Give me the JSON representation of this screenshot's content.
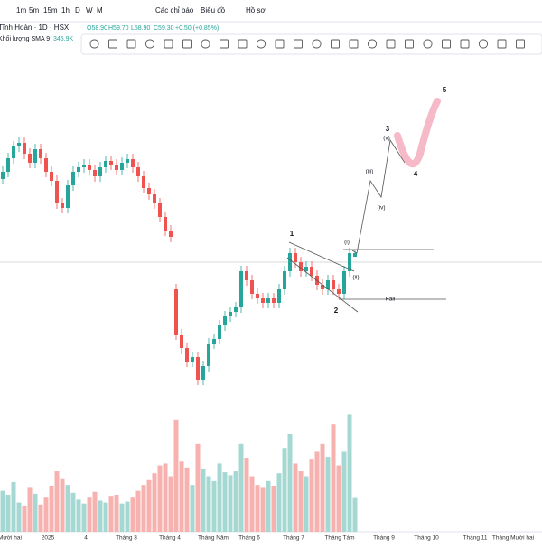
{
  "toolbar": {
    "intervals": [
      "1m",
      "5m",
      "15m",
      "1h",
      "D",
      "W",
      "M"
    ],
    "menus": [
      "Các chỉ báo",
      "Biểu đồ",
      "Hồ sơ"
    ]
  },
  "legend": {
    "symbol": "Tĩnh Hoàn · 1D · HSX",
    "open": "O58.90",
    "high": "H59.70",
    "low": "L58.90",
    "close": "C59.30",
    "change": "+0.50 (+0.85%)"
  },
  "volume_legend": {
    "label": "Khối lượng SMA 9",
    "value": "345.9K"
  },
  "candles": [
    [
      67.5,
      68.9,
      66.9,
      68.3
    ],
    [
      68.3,
      70.4,
      67.7,
      69.8
    ],
    [
      69.8,
      71.7,
      69.2,
      71.1
    ],
    [
      71.1,
      72.1,
      70.5,
      71.5
    ],
    [
      71.5,
      72.1,
      69.7,
      70.3
    ],
    [
      70.3,
      70.9,
      68.7,
      69.3
    ],
    [
      69.3,
      71.4,
      68.7,
      70.8
    ],
    [
      70.8,
      71.4,
      69.2,
      69.8
    ],
    [
      69.8,
      70.4,
      67.7,
      68.3
    ],
    [
      68.3,
      68.9,
      66.7,
      67.3
    ],
    [
      67.3,
      67.9,
      64.2,
      64.8
    ],
    [
      64.8,
      65.4,
      63.7,
      64.3
    ],
    [
      64.3,
      67.4,
      63.7,
      66.8
    ],
    [
      66.8,
      68.9,
      66.2,
      68.3
    ],
    [
      68.3,
      69.4,
      67.7,
      68.8
    ],
    [
      68.8,
      69.7,
      68.2,
      69.1
    ],
    [
      69.1,
      69.7,
      67.9,
      68.5
    ],
    [
      68.5,
      69.1,
      67.2,
      67.8
    ],
    [
      67.8,
      69.4,
      67.2,
      68.8
    ],
    [
      68.8,
      70.1,
      68.2,
      69.5
    ],
    [
      69.5,
      70.1,
      68.5,
      69.1
    ],
    [
      69.1,
      69.7,
      67.9,
      68.5
    ],
    [
      68.5,
      69.9,
      67.9,
      69.3
    ],
    [
      69.3,
      70.3,
      68.7,
      69.7
    ],
    [
      69.7,
      70.3,
      68.2,
      68.8
    ],
    [
      68.8,
      69.4,
      67.2,
      67.8
    ],
    [
      67.8,
      68.4,
      65.9,
      66.5
    ],
    [
      66.5,
      67.1,
      65.2,
      65.8
    ],
    [
      65.8,
      66.4,
      64.2,
      64.8
    ],
    [
      64.8,
      65.4,
      62.7,
      63.3
    ],
    [
      63.3,
      63.9,
      61.2,
      61.8
    ],
    [
      61.8,
      62.4,
      60.5,
      61.1
    ],
    [
      55.3,
      55.9,
      49.7,
      50.3
    ],
    [
      50.3,
      50.9,
      48.2,
      48.8
    ],
    [
      48.8,
      49.4,
      46.7,
      47.3
    ],
    [
      47.3,
      48.4,
      46.7,
      47.8
    ],
    [
      47.8,
      48.4,
      44.7,
      45.3
    ],
    [
      45.3,
      47.4,
      44.7,
      46.8
    ],
    [
      46.8,
      49.9,
      46.2,
      49.3
    ],
    [
      49.3,
      50.4,
      48.7,
      49.8
    ],
    [
      49.8,
      51.9,
      49.2,
      51.3
    ],
    [
      51.3,
      52.9,
      50.7,
      52.3
    ],
    [
      52.3,
      53.4,
      51.7,
      52.8
    ],
    [
      52.8,
      53.9,
      52.2,
      53.3
    ],
    [
      53.3,
      57.9,
      52.7,
      57.3
    ],
    [
      57.3,
      57.9,
      55.7,
      56.3
    ],
    [
      56.3,
      56.9,
      54.2,
      54.8
    ],
    [
      54.8,
      55.4,
      53.7,
      54.3
    ],
    [
      54.3,
      54.9,
      53.2,
      53.8
    ],
    [
      53.8,
      54.9,
      53.2,
      54.3
    ],
    [
      54.3,
      54.9,
      53.2,
      53.8
    ],
    [
      53.8,
      55.9,
      53.2,
      55.3
    ],
    [
      55.3,
      57.9,
      54.7,
      57.3
    ],
    [
      57.3,
      59.9,
      56.7,
      59.3
    ],
    [
      59.3,
      59.9,
      57.7,
      58.3
    ],
    [
      58.3,
      58.9,
      56.7,
      57.3
    ],
    [
      57.3,
      58.4,
      56.7,
      57.8
    ],
    [
      57.8,
      58.4,
      56.2,
      56.8
    ],
    [
      56.8,
      57.4,
      55.2,
      55.8
    ],
    [
      55.8,
      56.4,
      54.7,
      55.3
    ],
    [
      55.3,
      56.9,
      54.7,
      56.3
    ],
    [
      56.3,
      56.9,
      54.7,
      55.3
    ],
    [
      55.3,
      55.9,
      54.2,
      54.8
    ],
    [
      54.8,
      57.9,
      54.2,
      57.3
    ],
    [
      57.3,
      59.9,
      56.7,
      59.3
    ],
    [
      58.9,
      59.7,
      58.9,
      59.3
    ]
  ],
  "volumes": [
    420,
    380,
    510,
    300,
    260,
    450,
    390,
    280,
    350,
    470,
    620,
    540,
    480,
    400,
    330,
    290,
    350,
    410,
    320,
    300,
    360,
    380,
    290,
    310,
    350,
    420,
    480,
    530,
    600,
    680,
    700,
    560,
    1150,
    720,
    650,
    480,
    900,
    640,
    560,
    520,
    700,
    610,
    580,
    620,
    900,
    750,
    560,
    480,
    450,
    520,
    470,
    600,
    850,
    1000,
    700,
    620,
    560,
    740,
    820,
    900,
    760,
    1100,
    680,
    820,
    1200,
    345.9
  ],
  "annotations": [
    "1",
    "2",
    "3",
    "4",
    "5",
    "(i)",
    "(ii)",
    "(iii)",
    "(iv)",
    "(v)",
    "Fail"
  ],
  "x_labels": [
    "Mười hai",
    "2025",
    "4",
    "Tháng 3",
    "Tháng 4",
    "Tháng Năm",
    "Tháng 6",
    "Tháng 7",
    "Tháng Tám",
    "Tháng 9",
    "Tháng 10",
    "Tháng 11",
    "Tháng Mười hai"
  ]
}
